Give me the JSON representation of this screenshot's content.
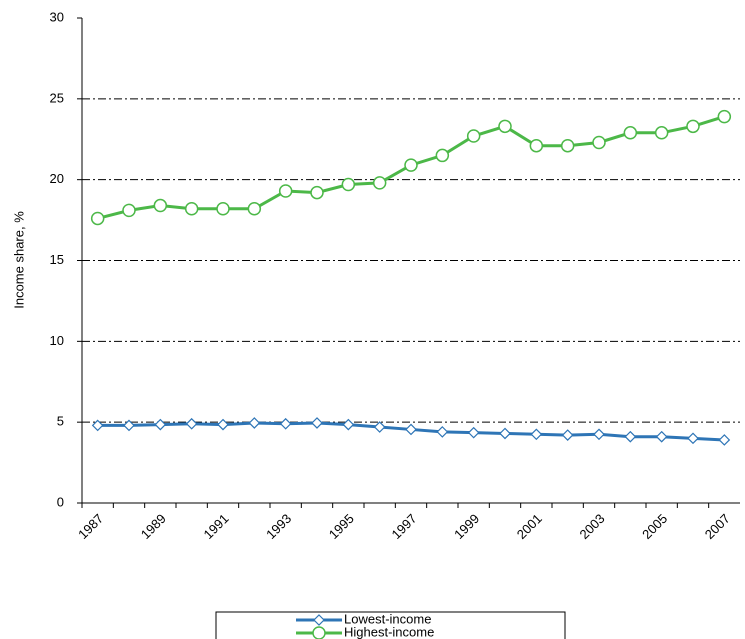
{
  "chart_data": {
    "type": "line",
    "y_label": "Income share, %",
    "categories": [
      "1987",
      null,
      "1989",
      null,
      "1991",
      null,
      "1993",
      null,
      "1995",
      null,
      "1997",
      null,
      "1999",
      null,
      "2001",
      null,
      "2003",
      null,
      "2005",
      null,
      "2007"
    ],
    "series": [
      {
        "name": "Lowest-income",
        "color": "#2e75b6",
        "marker": "diamond",
        "values": [
          4.8,
          4.8,
          4.85,
          4.9,
          4.85,
          4.95,
          4.9,
          4.95,
          4.85,
          4.7,
          4.55,
          4.4,
          4.35,
          4.3,
          4.25,
          4.2,
          4.25,
          4.1,
          4.1,
          4.0,
          3.9
        ]
      },
      {
        "name": "Highest-income",
        "color": "#4cb848",
        "marker": "circle",
        "values": [
          17.6,
          18.1,
          18.4,
          18.2,
          18.2,
          18.2,
          19.3,
          19.2,
          19.7,
          19.8,
          20.9,
          21.5,
          22.7,
          23.3,
          22.1,
          22.1,
          22.3,
          22.9,
          22.9,
          23.3,
          23.9
        ]
      }
    ],
    "ylim": [
      0,
      30
    ],
    "yticks": [
      0,
      5,
      10,
      15,
      20,
      25,
      30
    ],
    "grid": true
  }
}
